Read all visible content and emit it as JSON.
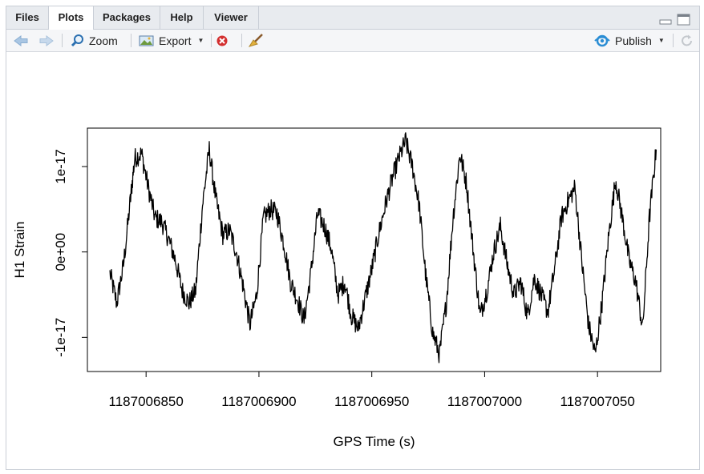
{
  "tabs": [
    {
      "label": "Files",
      "active": false
    },
    {
      "label": "Plots",
      "active": true
    },
    {
      "label": "Packages",
      "active": false
    },
    {
      "label": "Help",
      "active": false
    },
    {
      "label": "Viewer",
      "active": false
    }
  ],
  "toolbar": {
    "back_icon": "arrow-left-icon",
    "forward_icon": "arrow-right-icon",
    "zoom_label": "Zoom",
    "export_label": "Export",
    "remove_icon": "remove-plot-icon",
    "clear_icon": "broom-icon",
    "publish_label": "Publish",
    "refresh_icon": "refresh-icon",
    "accent": "#2a8dd4"
  },
  "chart_data": {
    "type": "line",
    "title": "",
    "xlabel": "GPS Time (s)",
    "ylabel": "H1 Strain",
    "xlim": [
      1187006824,
      1187007078
    ],
    "ylim": [
      -1.4e-17,
      1.45e-17
    ],
    "xticks": [
      1187006850,
      1187006900,
      1187006950,
      1187007000,
      1187007050
    ],
    "xtick_labels": [
      "1187006850",
      "1187006900",
      "1187006950",
      "1187007000",
      "1187007050"
    ],
    "yticks": [
      -1e-17,
      0,
      1e-17
    ],
    "ytick_labels": [
      "-1e-17",
      "0e+00",
      "1e-17"
    ],
    "grid": false,
    "line_color": "#000000",
    "series": [
      {
        "x": [
          1187006834,
          1187006837,
          1187006840,
          1187006843,
          1187006845,
          1187006848,
          1187006851,
          1187006854,
          1187006857,
          1187006860,
          1187006863,
          1187006866,
          1187006869,
          1187006872,
          1187006875,
          1187006878,
          1187006881,
          1187006884,
          1187006887,
          1187006890,
          1187006893,
          1187006896,
          1187006899,
          1187006902,
          1187006905,
          1187006908,
          1187006911,
          1187006914,
          1187006917,
          1187006920,
          1187006923,
          1187006926,
          1187006929,
          1187006932,
          1187006935,
          1187006938,
          1187006941,
          1187006944,
          1187006947,
          1187006950,
          1187006953,
          1187006956,
          1187006959,
          1187006962,
          1187006965,
          1187006968,
          1187006971,
          1187006974,
          1187006977,
          1187006980,
          1187006983,
          1187006986,
          1187006989,
          1187006992,
          1187006995,
          1187006998,
          1187007001,
          1187007004,
          1187007007,
          1187007010,
          1187007013,
          1187007016,
          1187007019,
          1187007022,
          1187007025,
          1187007028,
          1187007031,
          1187007034,
          1187007037,
          1187007040,
          1187007043,
          1187007046,
          1187007049,
          1187007052,
          1187007055,
          1187007058,
          1187007061,
          1187007064,
          1187007067,
          1187007070,
          1187007073,
          1187007076
        ],
        "y": [
          -2.5e-18,
          -6e-18,
          -1.5e-18,
          6e-18,
          1.1e-17,
          1.15e-17,
          7.5e-18,
          4e-18,
          3.5e-18,
          1.5e-18,
          -1e-18,
          -4.5e-18,
          -6e-18,
          -4.5e-18,
          5.5e-18,
          1.2e-17,
          6e-18,
          2e-18,
          2.5e-18,
          0.0,
          -4e-18,
          -8.5e-18,
          -5e-18,
          4e-18,
          5e-18,
          4.5e-18,
          1e-18,
          -3.5e-18,
          -5.5e-18,
          -8e-18,
          -2.5e-18,
          4.5e-18,
          3e-18,
          5e-19,
          -5e-18,
          -3.5e-18,
          -7.5e-18,
          -9e-18,
          -5.5e-18,
          -2e-18,
          2e-18,
          5.5e-18,
          8.5e-18,
          1.1e-17,
          1.3e-17,
          1e-17,
          5.5e-18,
          -3e-18,
          -9.5e-18,
          -1.2e-17,
          -6e-18,
          4e-18,
          1.15e-17,
          8e-18,
          0.0,
          -7.5e-18,
          -4.5e-18,
          0.0,
          3e-18,
          -1.5e-18,
          -5e-18,
          -3.5e-18,
          -7.5e-18,
          -3e-18,
          -5e-18,
          -7e-18,
          -2e-18,
          4e-18,
          6e-18,
          7.5e-18,
          -1e-18,
          -8.5e-18,
          -1.2e-17,
          -6e-18,
          2e-18,
          8.5e-18,
          4e-18,
          -1e-18,
          -3.5e-18,
          -9e-18,
          4e-18,
          1.2e-17
        ]
      }
    ]
  }
}
